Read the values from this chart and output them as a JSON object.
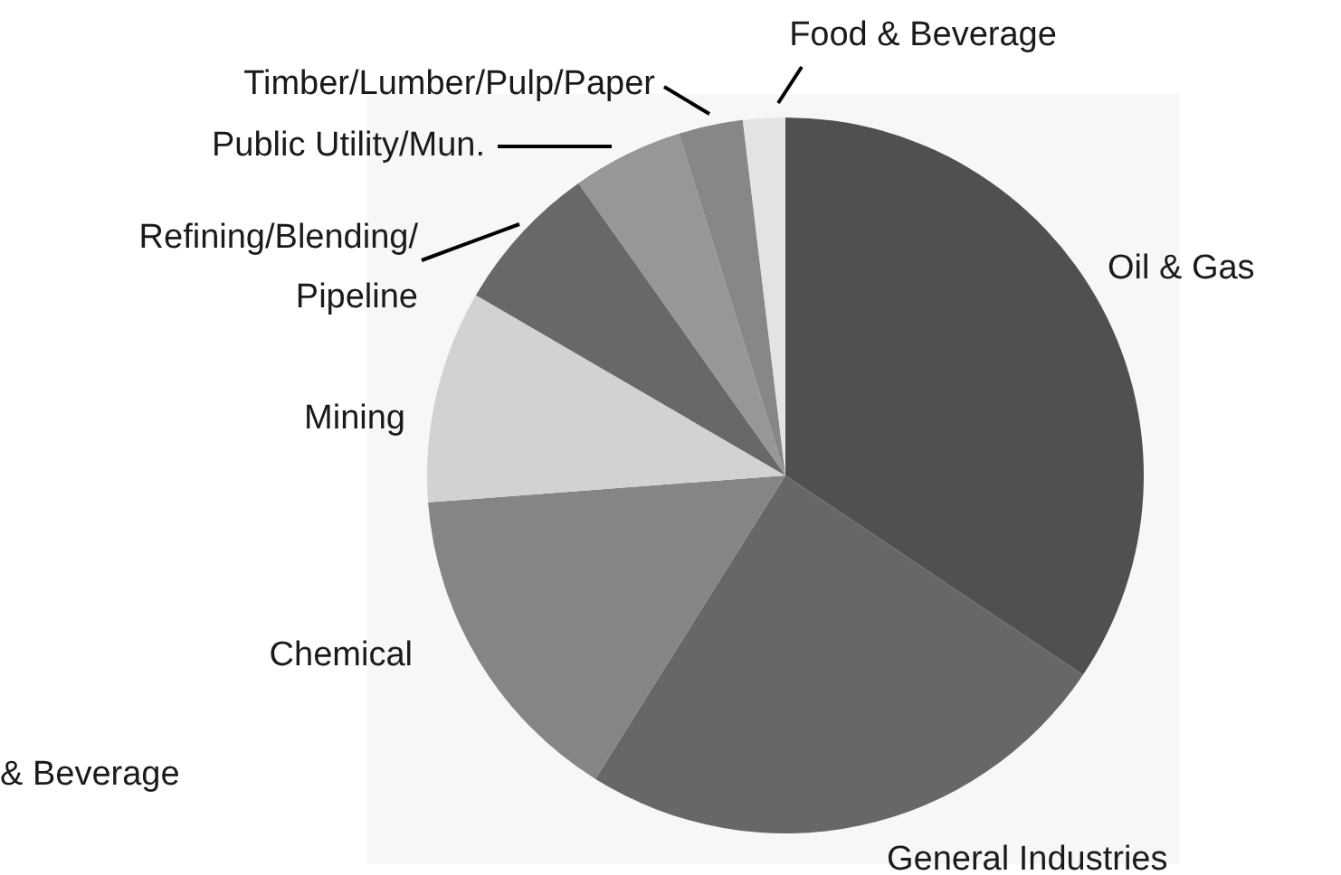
{
  "chart_data": {
    "type": "pie",
    "categories": [
      "Oil & Gas",
      "General Industries",
      "Chemical",
      "Mining",
      "Refining/Blending/Pipeline",
      "Public Utility/Mun.",
      "Timber/Lumber/Pulp/Paper",
      "Food & Beverage"
    ],
    "values": [
      34.4,
      24.5,
      14.9,
      9.6,
      6.8,
      5.0,
      2.9,
      1.9
    ],
    "colors": [
      "#505053",
      "#67676a",
      "#858587",
      "#d2d2d3",
      "#68686b",
      "#97979a",
      "#87878a",
      "#e3e3e4"
    ],
    "annotations": [
      "& Beverage"
    ]
  }
}
